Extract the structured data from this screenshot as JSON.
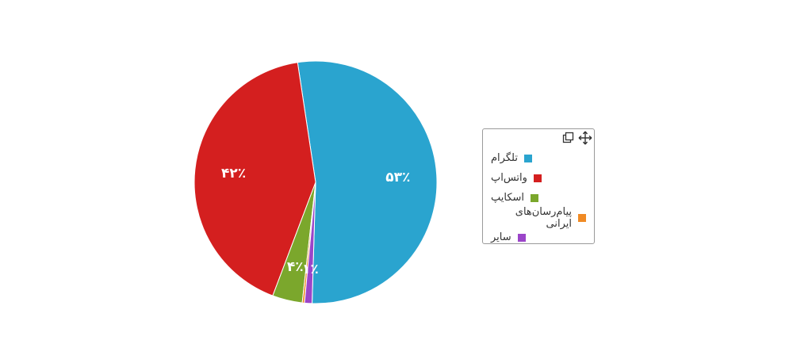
{
  "chart_data": {
    "type": "pie",
    "slices": [
      {
        "name": "تلگرام",
        "value": 53,
        "label": "۵۳٪",
        "color": "#2aa4cf"
      },
      {
        "name": "واتس‌اپ",
        "value": 42,
        "label": "۴۲٪",
        "color": "#d41f1f"
      },
      {
        "name": "اسکایپ",
        "value": 4,
        "label": "۴٪",
        "color": "#7ba72c"
      },
      {
        "name": "پیام‌رسان‌های ایرانی",
        "value": 0.3,
        "label": "",
        "color": "#f08a24"
      },
      {
        "name": "سایر",
        "value": 1,
        "label": "۱٪",
        "color": "#9b45c9"
      }
    ],
    "legend_position": "right",
    "legend_icons": [
      "copy-icon",
      "move-icon"
    ]
  }
}
